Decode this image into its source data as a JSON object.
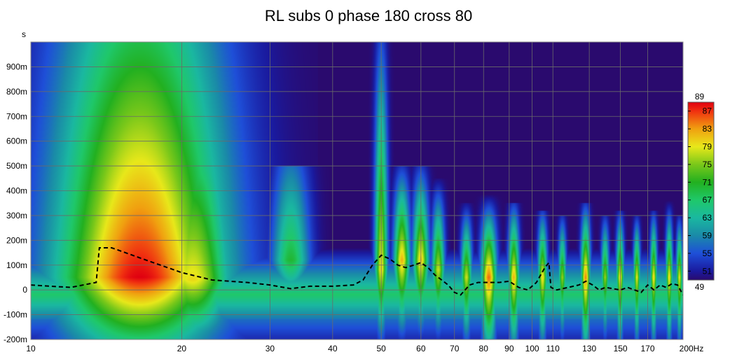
{
  "chart_data": {
    "type": "heatmap",
    "title": "RL subs 0 phase 180 cross 80",
    "ylabel": "s",
    "xunit": "Hz",
    "xscale": "log",
    "xlim": [
      10,
      200
    ],
    "ylim": [
      -0.2,
      1.0
    ],
    "x_ticks": [
      {
        "value": 10,
        "label": "10"
      },
      {
        "value": 20,
        "label": "20"
      },
      {
        "value": 30,
        "label": "30"
      },
      {
        "value": 40,
        "label": "40"
      },
      {
        "value": 50,
        "label": "50"
      },
      {
        "value": 60,
        "label": "60"
      },
      {
        "value": 70,
        "label": "70"
      },
      {
        "value": 80,
        "label": "80"
      },
      {
        "value": 90,
        "label": "90"
      },
      {
        "value": 100,
        "label": "100"
      },
      {
        "value": 110,
        "label": "110"
      },
      {
        "value": 130,
        "label": "130"
      },
      {
        "value": 150,
        "label": "150"
      },
      {
        "value": 170,
        "label": "170"
      },
      {
        "value": 200,
        "label": "200Hz"
      }
    ],
    "y_ticks": [
      {
        "value": 0.9,
        "label": "900m"
      },
      {
        "value": 0.8,
        "label": "800m"
      },
      {
        "value": 0.7,
        "label": "700m"
      },
      {
        "value": 0.6,
        "label": "600m"
      },
      {
        "value": 0.5,
        "label": "500m"
      },
      {
        "value": 0.4,
        "label": "400m"
      },
      {
        "value": 0.3,
        "label": "300m"
      },
      {
        "value": 0.2,
        "label": "200m"
      },
      {
        "value": 0.1,
        "label": "100m"
      },
      {
        "value": 0.0,
        "label": "0"
      },
      {
        "value": -0.1,
        "label": "-100m"
      },
      {
        "value": -0.2,
        "label": "-200m"
      }
    ],
    "colorbar": {
      "min": 49,
      "max": 89,
      "labels": [
        "89",
        "87",
        "83",
        "79",
        "75",
        "71",
        "67",
        "63",
        "59",
        "55",
        "51",
        "49"
      ],
      "stops": [
        {
          "value": 49,
          "color": "#2a0a6e"
        },
        {
          "value": 51,
          "color": "#1a1a9e"
        },
        {
          "value": 55,
          "color": "#1e4fd8"
        },
        {
          "value": 59,
          "color": "#1a8aa8"
        },
        {
          "value": 63,
          "color": "#1ab8a0"
        },
        {
          "value": 67,
          "color": "#1fc86a"
        },
        {
          "value": 71,
          "color": "#22b020"
        },
        {
          "value": 75,
          "color": "#7ac81a"
        },
        {
          "value": 79,
          "color": "#e8e81a"
        },
        {
          "value": 83,
          "color": "#f0a010"
        },
        {
          "value": 87,
          "color": "#f03010"
        },
        {
          "value": 89,
          "color": "#e00010"
        }
      ]
    },
    "ridges": [
      {
        "f": 16.5,
        "t_peak": 0.05,
        "peak": 89,
        "width_oct": 0.55,
        "decay": 1.6,
        "top": 1.0
      },
      {
        "f": 14.0,
        "t_peak": 0.04,
        "peak": 76,
        "width_oct": 0.3,
        "decay": 1.0,
        "top": 1.0
      },
      {
        "f": 21.0,
        "t_peak": 0.04,
        "peak": 80,
        "width_oct": 0.25,
        "decay": 0.9,
        "top": 1.0
      },
      {
        "f": 33.0,
        "t_peak": 0.12,
        "peak": 70,
        "width_oct": 0.12,
        "decay": 0.45,
        "top": 0.5
      },
      {
        "f": 50.0,
        "t_peak": 0.08,
        "peak": 80,
        "width_oct": 0.04,
        "decay": 0.9,
        "top": 1.0
      },
      {
        "f": 55.0,
        "t_peak": 0.12,
        "peak": 82,
        "width_oct": 0.05,
        "decay": 0.35,
        "top": 0.5
      },
      {
        "f": 60.0,
        "t_peak": 0.12,
        "peak": 81,
        "width_oct": 0.05,
        "decay": 0.35,
        "top": 0.5
      },
      {
        "f": 65.0,
        "t_peak": 0.08,
        "peak": 78,
        "width_oct": 0.04,
        "decay": 0.3,
        "top": 0.45
      },
      {
        "f": 74.0,
        "t_peak": 0.05,
        "peak": 78,
        "width_oct": 0.035,
        "decay": 0.25,
        "top": 0.35
      },
      {
        "f": 82.0,
        "t_peak": 0.05,
        "peak": 85,
        "width_oct": 0.05,
        "decay": 0.28,
        "top": 0.4
      },
      {
        "f": 92.0,
        "t_peak": 0.05,
        "peak": 82,
        "width_oct": 0.035,
        "decay": 0.28,
        "top": 0.35
      },
      {
        "f": 105.0,
        "t_peak": 0.05,
        "peak": 80,
        "width_oct": 0.03,
        "decay": 0.25,
        "top": 0.32
      },
      {
        "f": 115.0,
        "t_peak": 0.05,
        "peak": 76,
        "width_oct": 0.025,
        "decay": 0.22,
        "top": 0.3
      },
      {
        "f": 128.0,
        "t_peak": 0.05,
        "peak": 84,
        "width_oct": 0.03,
        "decay": 0.28,
        "top": 0.35
      },
      {
        "f": 140.0,
        "t_peak": 0.05,
        "peak": 76,
        "width_oct": 0.025,
        "decay": 0.22,
        "top": 0.3
      },
      {
        "f": 150.0,
        "t_peak": 0.05,
        "peak": 80,
        "width_oct": 0.025,
        "decay": 0.24,
        "top": 0.32
      },
      {
        "f": 162.0,
        "t_peak": 0.05,
        "peak": 79,
        "width_oct": 0.022,
        "decay": 0.22,
        "top": 0.3
      },
      {
        "f": 175.0,
        "t_peak": 0.05,
        "peak": 80,
        "width_oct": 0.022,
        "decay": 0.24,
        "top": 0.32
      },
      {
        "f": 188.0,
        "t_peak": 0.05,
        "peak": 80,
        "width_oct": 0.022,
        "decay": 0.25,
        "top": 0.38
      },
      {
        "f": 197.0,
        "t_peak": 0.05,
        "peak": 79,
        "width_oct": 0.02,
        "decay": 0.22,
        "top": 0.3
      }
    ],
    "dashed_line": {
      "x": [
        10,
        12,
        13.5,
        13.7,
        14.5,
        17,
        20,
        23,
        27,
        30,
        33,
        36,
        40,
        44,
        46,
        48,
        50,
        52,
        54,
        56,
        58,
        60,
        62,
        64,
        66,
        68,
        70,
        72,
        75,
        78,
        82,
        86,
        90,
        94,
        98,
        102,
        106,
        108,
        109,
        112,
        118,
        124,
        128,
        132,
        136,
        140,
        145,
        150,
        155,
        160,
        165,
        170,
        175,
        180,
        185,
        190,
        195,
        200
      ],
      "y": [
        0.02,
        0.01,
        0.03,
        0.17,
        0.17,
        0.12,
        0.07,
        0.04,
        0.03,
        0.02,
        0.005,
        0.015,
        0.015,
        0.02,
        0.04,
        0.1,
        0.14,
        0.125,
        0.1,
        0.09,
        0.1,
        0.11,
        0.09,
        0.06,
        0.04,
        0.02,
        -0.01,
        -0.02,
        0.02,
        0.03,
        0.03,
        0.03,
        0.035,
        0.01,
        0.0,
        0.03,
        0.09,
        0.11,
        0.01,
        0.0,
        0.01,
        0.02,
        0.035,
        0.02,
        0.0,
        0.01,
        0.005,
        0.0,
        0.01,
        0.0,
        -0.01,
        0.02,
        0.0,
        0.02,
        0.01,
        0.025,
        0.02,
        -0.02
      ]
    }
  }
}
